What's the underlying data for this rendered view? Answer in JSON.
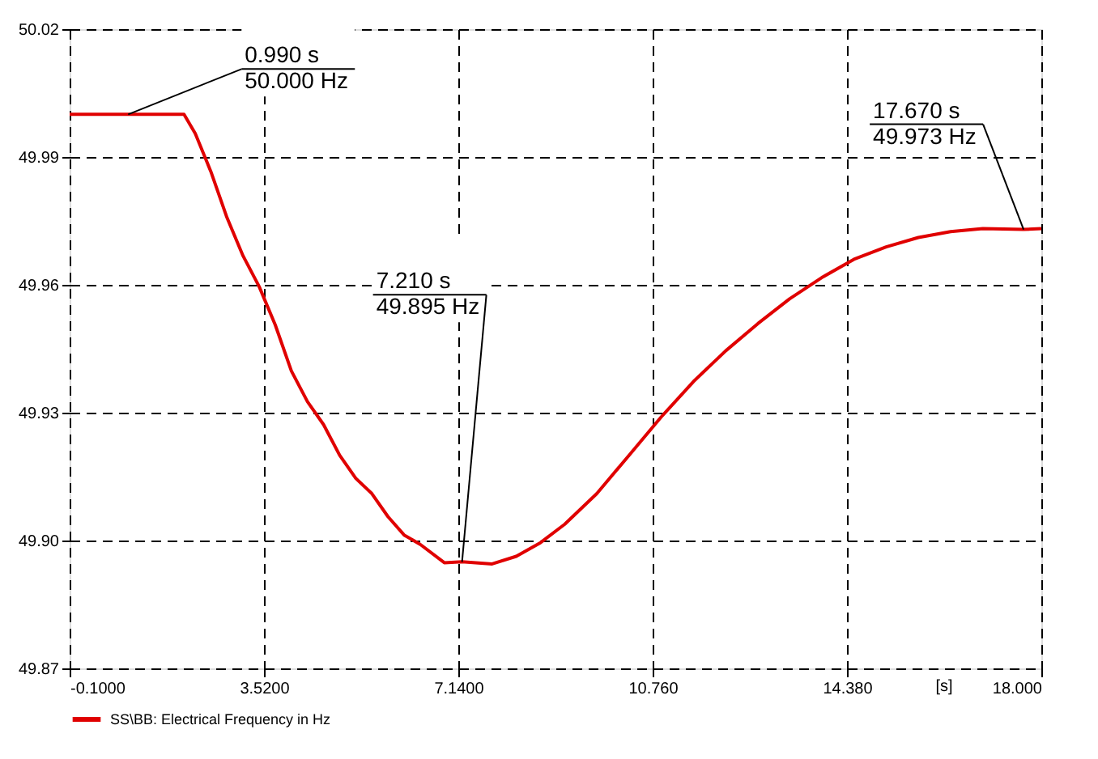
{
  "chart_data": {
    "type": "line",
    "xlabel": "[s]",
    "xlim": [
      -0.1,
      18.0
    ],
    "ylim": [
      49.87,
      50.02
    ],
    "xticks": [
      {
        "value": -0.1,
        "label": "-0.1000"
      },
      {
        "value": 3.52,
        "label": "3.5200"
      },
      {
        "value": 7.14,
        "label": "7.1400"
      },
      {
        "value": 10.76,
        "label": "10.760"
      },
      {
        "value": 14.38,
        "label": "14.380"
      },
      {
        "value": 18.0,
        "label": "18.000"
      }
    ],
    "yticks": [
      49.87,
      {
        "value": 49.9,
        "label": "49.90"
      },
      49.93,
      49.96,
      49.99,
      50.02
    ],
    "grid": true,
    "legend": "bottom",
    "line_style": "solid",
    "marker": "none",
    "series": [
      {
        "name": "SS\\BB: Electrical Frequency in Hz",
        "color": "#e00000",
        "x": [
          -0.1,
          0.99,
          2.03,
          2.24,
          2.53,
          2.83,
          3.13,
          3.43,
          3.73,
          4.03,
          4.33,
          4.63,
          4.93,
          5.23,
          5.53,
          5.83,
          6.13,
          6.43,
          6.88,
          7.21,
          7.77,
          8.22,
          8.67,
          9.12,
          9.72,
          10.32,
          10.92,
          11.52,
          12.12,
          12.72,
          13.31,
          13.91,
          14.51,
          15.11,
          15.71,
          16.31,
          16.91,
          17.67,
          18.0
        ],
        "values": [
          50.0,
          50.0,
          50.0,
          49.9955,
          49.9866,
          49.9758,
          49.9668,
          49.9596,
          49.9506,
          49.9398,
          49.9326,
          49.9272,
          49.92,
          49.9146,
          49.911,
          49.9056,
          49.9013,
          49.8991,
          49.8948,
          49.895,
          49.8945,
          49.8963,
          49.8995,
          49.9038,
          49.911,
          49.92,
          49.929,
          49.9373,
          49.9445,
          49.9509,
          49.9567,
          49.9617,
          49.966,
          49.9689,
          49.9711,
          49.9725,
          49.9732,
          49.973,
          49.9732
        ]
      }
    ],
    "annotations": [
      {
        "text": "0.990 s\n50.000 Hz",
        "x": 0.99,
        "y": 50.0
      },
      {
        "text": "7.210 s\n49.895 Hz",
        "x": 7.21,
        "y": 49.895
      },
      {
        "text": "17.670 s\n49.973 Hz",
        "x": 17.67,
        "y": 49.973
      }
    ]
  }
}
